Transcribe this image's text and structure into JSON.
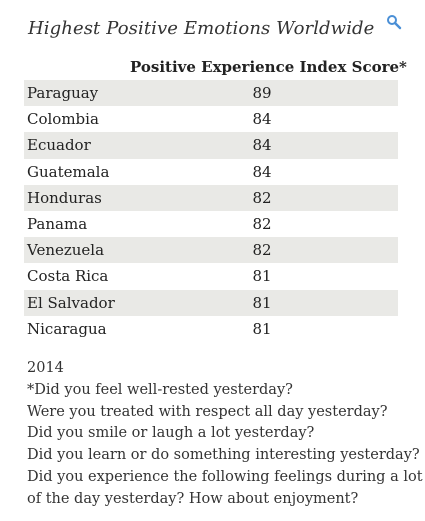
{
  "title": "Highest Positive Emotions Worldwide",
  "icons": {
    "search": "search-icon",
    "accent_color": "#4a8fd6"
  },
  "chart_data": {
    "type": "table",
    "column_header": "Positive Experience Index Score*",
    "rows": [
      {
        "country": "Paraguay",
        "score": "89"
      },
      {
        "country": "Colombia",
        "score": "84"
      },
      {
        "country": "Ecuador",
        "score": "84"
      },
      {
        "country": "Guatemala",
        "score": "84"
      },
      {
        "country": "Honduras",
        "score": "82"
      },
      {
        "country": "Panama",
        "score": "82"
      },
      {
        "country": "Venezuela",
        "score": "82"
      },
      {
        "country": "Costa Rica",
        "score": "81"
      },
      {
        "country": "El Salvador",
        "score": "81"
      },
      {
        "country": "Nicaragua",
        "score": "81"
      }
    ],
    "row_shading": "alternating",
    "shade_color": "#e9e9e6"
  },
  "notes": {
    "year": "2014",
    "lines": [
      " *Did you feel well-rested yesterday?",
      "Were you treated with respect all day yesterday?",
      "Did you smile or laugh a lot yesterday?",
      "Did you learn or do something interesting yesterday?",
      "Did you experience the following feelings during a lot",
      "of the day yesterday? How about enjoyment?"
    ]
  }
}
